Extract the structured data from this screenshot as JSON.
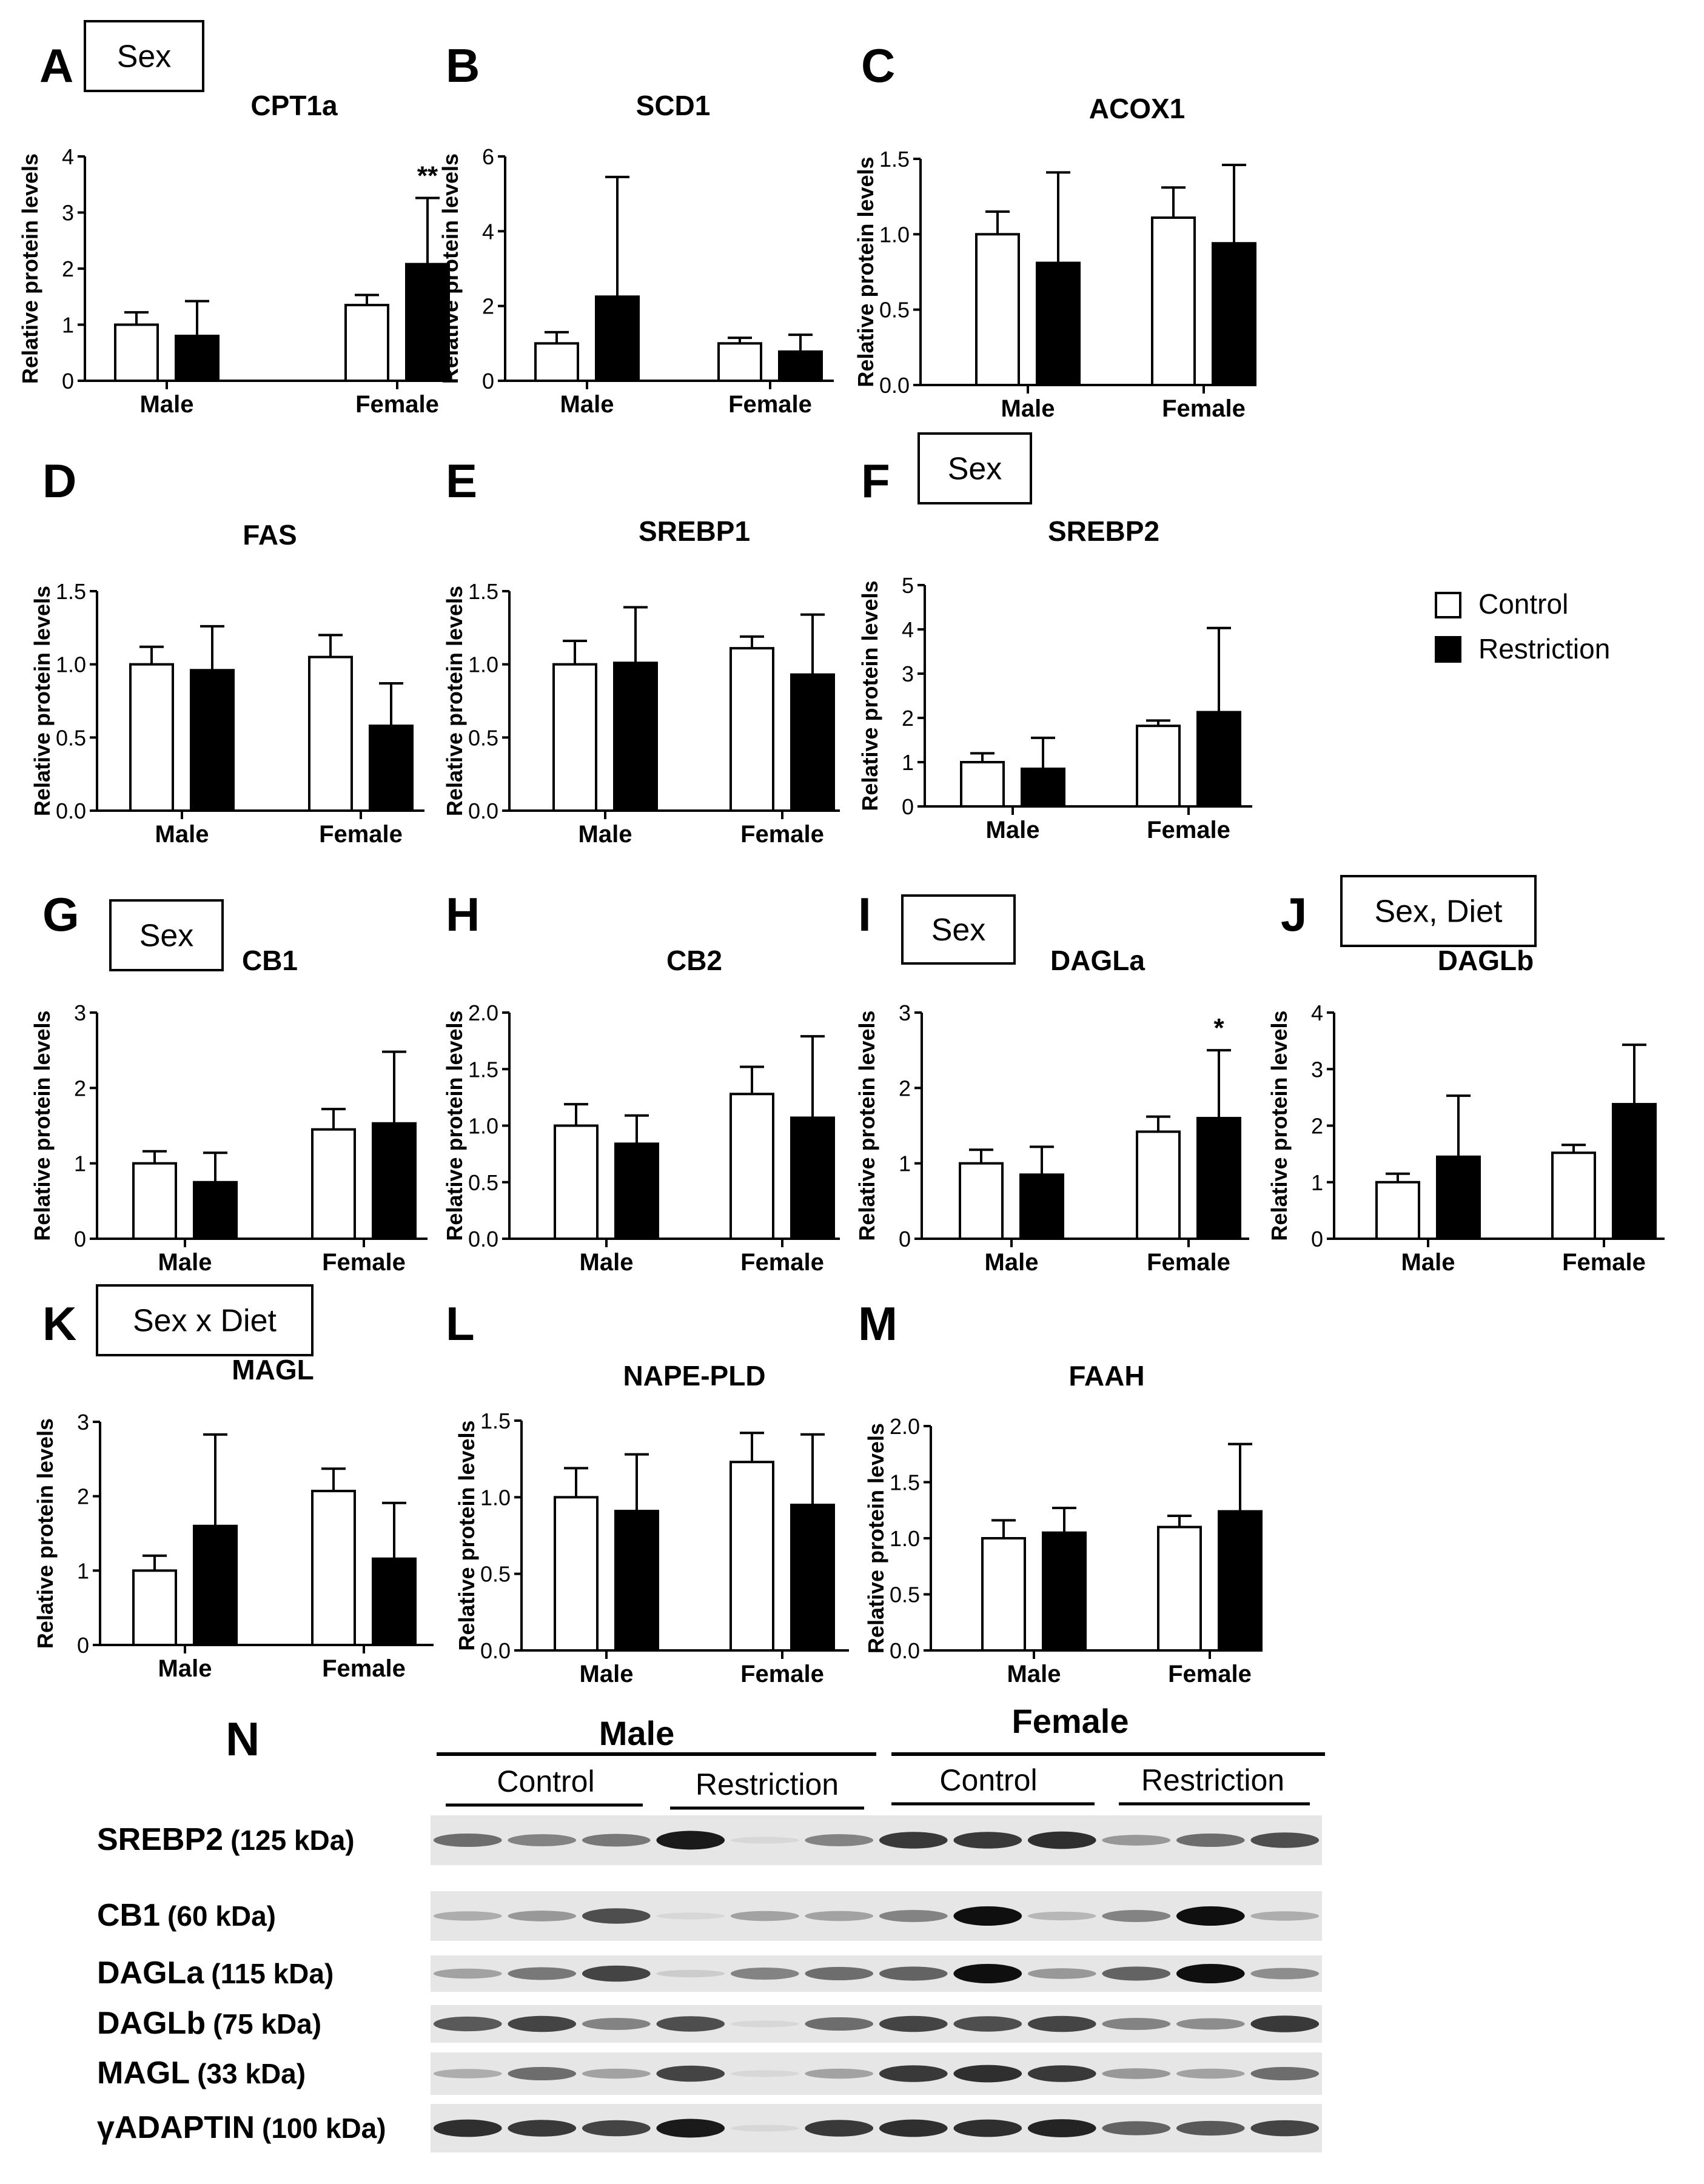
{
  "figure": {
    "ylabel": "Relative protein levels",
    "legend": {
      "entries": [
        {
          "name": "Control",
          "fill": "#ffffff"
        },
        {
          "name": "Restriction",
          "fill": "#000000"
        }
      ]
    },
    "colors": {
      "bar_stroke": "#000000",
      "control": "#ffffff",
      "restriction": "#000000"
    }
  },
  "chart_data": [
    {
      "panel": "A",
      "type": "bar",
      "title": "CPT1a",
      "effect_box": "Sex",
      "ylim": [
        0,
        4
      ],
      "yticks": [
        "0",
        "1",
        "2",
        "3",
        "4"
      ],
      "categories": [
        "Male",
        "Female"
      ],
      "series": [
        {
          "name": "Control",
          "values": [
            1.0,
            1.35
          ],
          "errors": [
            0.22,
            0.18
          ]
        },
        {
          "name": "Restriction",
          "values": [
            0.8,
            2.08
          ],
          "errors": [
            0.62,
            1.18
          ]
        }
      ],
      "annotations": [
        {
          "category": "Female",
          "series": "Restriction",
          "text": "**"
        }
      ]
    },
    {
      "panel": "B",
      "type": "bar",
      "title": "SCD1",
      "effect_box": "",
      "ylim": [
        0,
        6
      ],
      "yticks": [
        "0",
        "2",
        "4",
        "6"
      ],
      "categories": [
        "Male",
        "Female"
      ],
      "series": [
        {
          "name": "Control",
          "values": [
            1.0,
            1.0
          ],
          "errors": [
            0.3,
            0.15
          ]
        },
        {
          "name": "Restriction",
          "values": [
            2.25,
            0.78
          ],
          "errors": [
            3.2,
            0.45
          ]
        }
      ],
      "annotations": []
    },
    {
      "panel": "C",
      "type": "bar",
      "title": "ACOX1",
      "effect_box": "",
      "ylim": [
        0,
        1.5
      ],
      "yticks": [
        "0.0",
        "0.5",
        "1.0",
        "1.5"
      ],
      "categories": [
        "Male",
        "Female"
      ],
      "series": [
        {
          "name": "Control",
          "values": [
            1.0,
            1.11
          ],
          "errors": [
            0.15,
            0.2
          ]
        },
        {
          "name": "Restriction",
          "values": [
            0.81,
            0.94
          ],
          "errors": [
            0.6,
            0.52
          ]
        }
      ],
      "annotations": []
    },
    {
      "panel": "D",
      "type": "bar",
      "title": "FAS",
      "effect_box": "",
      "ylim": [
        0,
        1.5
      ],
      "yticks": [
        "0.0",
        "0.5",
        "1.0",
        "1.5"
      ],
      "categories": [
        "Male",
        "Female"
      ],
      "series": [
        {
          "name": "Control",
          "values": [
            1.0,
            1.05
          ],
          "errors": [
            0.12,
            0.15
          ]
        },
        {
          "name": "Restriction",
          "values": [
            0.96,
            0.58
          ],
          "errors": [
            0.3,
            0.29
          ]
        }
      ],
      "annotations": []
    },
    {
      "panel": "E",
      "type": "bar",
      "title": "SREBP1",
      "effect_box": "",
      "ylim": [
        0,
        1.5
      ],
      "yticks": [
        "0.0",
        "0.5",
        "1.0",
        "1.5"
      ],
      "categories": [
        "Male",
        "Female"
      ],
      "series": [
        {
          "name": "Control",
          "values": [
            1.0,
            1.11
          ],
          "errors": [
            0.16,
            0.08
          ]
        },
        {
          "name": "Restriction",
          "values": [
            1.01,
            0.93
          ],
          "errors": [
            0.38,
            0.41
          ]
        }
      ],
      "annotations": []
    },
    {
      "panel": "F",
      "type": "bar",
      "title": "SREBP2",
      "effect_box": "Sex",
      "ylim": [
        0,
        5
      ],
      "yticks": [
        "0",
        "1",
        "2",
        "3",
        "4",
        "5"
      ],
      "categories": [
        "Male",
        "Female"
      ],
      "series": [
        {
          "name": "Control",
          "values": [
            1.0,
            1.82
          ],
          "errors": [
            0.2,
            0.12
          ]
        },
        {
          "name": "Restriction",
          "values": [
            0.85,
            2.13
          ],
          "errors": [
            0.7,
            1.9
          ]
        }
      ],
      "annotations": []
    },
    {
      "panel": "G",
      "type": "bar",
      "title": "CB1",
      "effect_box": "Sex",
      "ylim": [
        0,
        3
      ],
      "yticks": [
        "0",
        "1",
        "2",
        "3"
      ],
      "categories": [
        "Male",
        "Female"
      ],
      "series": [
        {
          "name": "Control",
          "values": [
            1.0,
            1.45
          ],
          "errors": [
            0.16,
            0.27
          ]
        },
        {
          "name": "Restriction",
          "values": [
            0.75,
            1.53
          ],
          "errors": [
            0.39,
            0.95
          ]
        }
      ],
      "annotations": []
    },
    {
      "panel": "H",
      "type": "bar",
      "title": "CB2",
      "effect_box": "",
      "ylim": [
        0,
        2.0
      ],
      "yticks": [
        "0.0",
        "0.5",
        "1.0",
        "1.5",
        "2.0"
      ],
      "categories": [
        "Male",
        "Female"
      ],
      "series": [
        {
          "name": "Control",
          "values": [
            1.0,
            1.28
          ],
          "errors": [
            0.19,
            0.24
          ]
        },
        {
          "name": "Restriction",
          "values": [
            0.84,
            1.07
          ],
          "errors": [
            0.25,
            0.72
          ]
        }
      ],
      "annotations": []
    },
    {
      "panel": "I",
      "type": "bar",
      "title": "DAGLa",
      "effect_box": "Sex",
      "ylim": [
        0,
        3
      ],
      "yticks": [
        "0",
        "1",
        "2",
        "3"
      ],
      "categories": [
        "Male",
        "Female"
      ],
      "series": [
        {
          "name": "Control",
          "values": [
            1.0,
            1.42
          ],
          "errors": [
            0.18,
            0.2
          ]
        },
        {
          "name": "Restriction",
          "values": [
            0.85,
            1.6
          ],
          "errors": [
            0.37,
            0.9
          ]
        }
      ],
      "annotations": [
        {
          "category": "Female",
          "series": "Restriction",
          "text": "*"
        }
      ]
    },
    {
      "panel": "J",
      "type": "bar",
      "title": "DAGLb",
      "effect_box": "Sex, Diet",
      "ylim": [
        0,
        4
      ],
      "yticks": [
        "0",
        "1",
        "2",
        "3",
        "4"
      ],
      "categories": [
        "Male",
        "Female"
      ],
      "series": [
        {
          "name": "Control",
          "values": [
            1.0,
            1.52
          ],
          "errors": [
            0.15,
            0.14
          ]
        },
        {
          "name": "Restriction",
          "values": [
            1.45,
            2.38
          ],
          "errors": [
            1.08,
            1.05
          ]
        }
      ],
      "annotations": []
    },
    {
      "panel": "K",
      "type": "bar",
      "title": "MAGL",
      "effect_box": "Sex x Diet",
      "ylim": [
        0,
        3
      ],
      "yticks": [
        "0",
        "1",
        "2",
        "3"
      ],
      "categories": [
        "Male",
        "Female"
      ],
      "series": [
        {
          "name": "Control",
          "values": [
            1.0,
            2.07
          ],
          "errors": [
            0.2,
            0.3
          ]
        },
        {
          "name": "Restriction",
          "values": [
            1.6,
            1.16
          ],
          "errors": [
            1.23,
            0.75
          ]
        }
      ],
      "annotations": []
    },
    {
      "panel": "L",
      "type": "bar",
      "title": "NAPE-PLD",
      "effect_box": "",
      "ylim": [
        0,
        1.5
      ],
      "yticks": [
        "0.0",
        "0.5",
        "1.0",
        "1.5"
      ],
      "categories": [
        "Male",
        "Female"
      ],
      "series": [
        {
          "name": "Control",
          "values": [
            1.0,
            1.23
          ],
          "errors": [
            0.19,
            0.19
          ]
        },
        {
          "name": "Restriction",
          "values": [
            0.91,
            0.95
          ],
          "errors": [
            0.37,
            0.46
          ]
        }
      ],
      "annotations": []
    },
    {
      "panel": "M",
      "type": "bar",
      "title": "FAAH",
      "effect_box": "",
      "ylim": [
        0,
        2.0
      ],
      "yticks": [
        "0.0",
        "0.5",
        "1.0",
        "1.5",
        "2.0"
      ],
      "categories": [
        "Male",
        "Female"
      ],
      "series": [
        {
          "name": "Control",
          "values": [
            1.0,
            1.1
          ],
          "errors": [
            0.16,
            0.1
          ]
        },
        {
          "name": "Restriction",
          "values": [
            1.05,
            1.24
          ],
          "errors": [
            0.22,
            0.6
          ]
        }
      ],
      "annotations": []
    }
  ],
  "blot": {
    "panel": "N",
    "sex_groups": [
      "Male",
      "Female"
    ],
    "diet_groups": [
      "Control",
      "Restriction",
      "Control",
      "Restriction"
    ],
    "rows": [
      {
        "protein": "SREBP2",
        "kda": "(125 kDa)",
        "intensities": [
          0.55,
          0.45,
          0.5,
          0.95,
          0.05,
          0.45,
          0.8,
          0.8,
          0.85,
          0.35,
          0.55,
          0.7
        ]
      },
      {
        "protein": "CB1",
        "kda": "(60 kDa)",
        "intensities": [
          0.25,
          0.35,
          0.7,
          0.05,
          0.3,
          0.3,
          0.45,
          1.0,
          0.2,
          0.45,
          1.0,
          0.25
        ]
      },
      {
        "protein": "DAGLa",
        "kda": "(115 kDa)",
        "intensities": [
          0.3,
          0.5,
          0.75,
          0.1,
          0.45,
          0.55,
          0.6,
          1.0,
          0.35,
          0.6,
          1.0,
          0.4
        ]
      },
      {
        "protein": "DAGLb",
        "kda": "(75 kDa)",
        "intensities": [
          0.65,
          0.75,
          0.45,
          0.7,
          0.05,
          0.55,
          0.75,
          0.7,
          0.75,
          0.45,
          0.4,
          0.8
        ]
      },
      {
        "protein": "MAGL",
        "kda": "(33 kDa)",
        "intensities": [
          0.25,
          0.55,
          0.3,
          0.75,
          0.05,
          0.3,
          0.8,
          0.85,
          0.8,
          0.35,
          0.3,
          0.55
        ]
      },
      {
        "protein": "γADAPTIN",
        "kda": "(100 kDa)",
        "intensities": [
          0.85,
          0.8,
          0.75,
          0.95,
          0.05,
          0.8,
          0.85,
          0.85,
          0.9,
          0.6,
          0.65,
          0.75
        ]
      }
    ]
  }
}
